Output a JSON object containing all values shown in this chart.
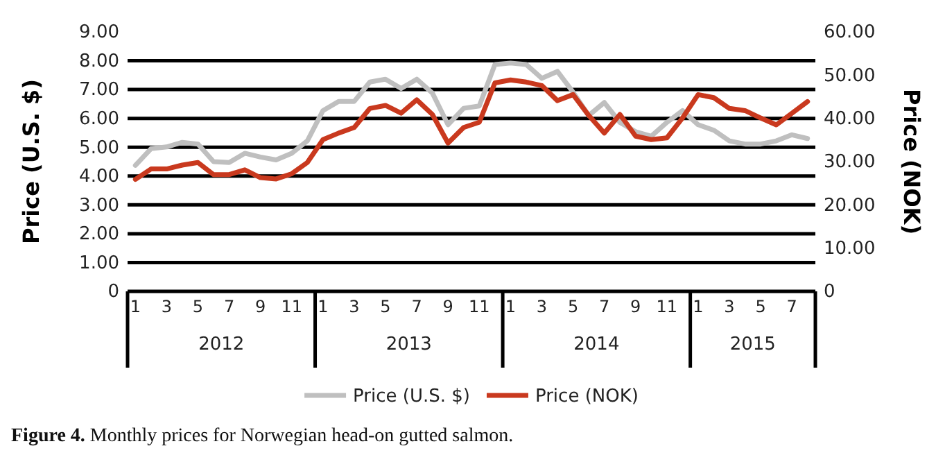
{
  "chart_data": {
    "type": "line",
    "categories": [
      "1",
      null,
      "3",
      null,
      "5",
      null,
      "7",
      null,
      "9",
      null,
      "11",
      null,
      "1",
      null,
      "3",
      null,
      "5",
      null,
      "7",
      null,
      "9",
      null,
      "11",
      null,
      "1",
      null,
      "3",
      null,
      "5",
      null,
      "7",
      null,
      "9",
      null,
      "11",
      null,
      "1",
      null,
      "3",
      null,
      "5",
      null,
      "7",
      null
    ],
    "series": [
      {
        "name": "Price (U.S. $)",
        "color": "#bfbfbf",
        "values": [
          4.37,
          4.95,
          5.01,
          5.17,
          5.11,
          4.5,
          4.47,
          4.79,
          4.66,
          4.56,
          4.79,
          5.22,
          6.27,
          6.59,
          6.59,
          7.26,
          7.36,
          7.04,
          7.36,
          6.88,
          5.78,
          6.35,
          6.43,
          7.87,
          7.92,
          7.87,
          7.39,
          7.63,
          6.91,
          6.1,
          6.55,
          5.86,
          5.54,
          5.38,
          5.86,
          6.27,
          5.78,
          5.59,
          5.22,
          5.11,
          5.11,
          5.22,
          5.43,
          5.3
        ]
      },
      {
        "name": "Price (NOK)",
        "color": "#c9391e",
        "axis": "y2",
        "values": [
          25.9,
          28.3,
          28.3,
          29.2,
          29.8,
          27.0,
          27.0,
          28.1,
          26.3,
          26.0,
          27.2,
          29.8,
          35.1,
          36.6,
          37.9,
          42.3,
          43.0,
          41.2,
          44.3,
          40.9,
          34.3,
          37.9,
          39.1,
          48.2,
          48.9,
          48.4,
          47.6,
          44.1,
          45.5,
          40.7,
          36.6,
          40.9,
          35.9,
          35.1,
          35.5,
          40.1,
          45.5,
          44.8,
          42.3,
          41.8,
          40.1,
          38.5,
          41.2,
          43.9
        ]
      }
    ],
    "ylabel": "Price (U.S. $)",
    "y2label": "Price (NOK)",
    "ylim": [
      0,
      9
    ],
    "yticks": [
      0,
      {
        "value": 1,
        "label": "1.00"
      },
      {
        "value": 2,
        "label": "2.00"
      },
      {
        "value": 3,
        "label": "3.00"
      },
      {
        "value": 4,
        "label": "4.00"
      },
      {
        "value": 5,
        "label": "5.00"
      },
      {
        "value": 6,
        "label": "6.00"
      },
      {
        "value": 7,
        "label": "7.00"
      },
      {
        "value": 8,
        "label": "8.00"
      },
      {
        "value": 9,
        "label": "9.00"
      }
    ],
    "y2lim": [
      0,
      60
    ],
    "y2ticks": [
      0,
      {
        "value": 10,
        "label": "10.00"
      },
      {
        "value": 20,
        "label": "20.00"
      },
      {
        "value": 30,
        "label": "30.00"
      },
      {
        "value": 40,
        "label": "40.00"
      },
      {
        "value": 50,
        "label": "50.00"
      },
      {
        "value": 60,
        "label": "60.00"
      }
    ],
    "grid": "y",
    "legend": "bottom",
    "marker": "none",
    "line_style": "solid",
    "annotations": [
      "2012",
      "2013",
      "2014",
      "2015",
      "Figure 4. Monthly prices for Norwegian head-on gutted salmon."
    ]
  }
}
